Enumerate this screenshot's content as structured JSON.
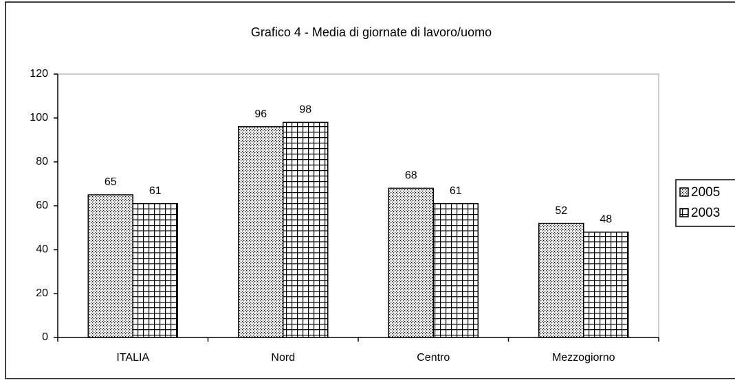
{
  "chart_data": {
    "type": "bar",
    "title": "Grafico 4 - Media di giornate di lavoro/uomo",
    "categories": [
      "ITALIA",
      "Nord",
      "Centro",
      "Mezzogiorno"
    ],
    "series": [
      {
        "name": "2005",
        "color": "#000000",
        "pattern": "dots",
        "values": [
          65,
          96,
          68,
          52
        ]
      },
      {
        "name": "2003",
        "color": "#000000",
        "pattern": "grid",
        "values": [
          61,
          98,
          61,
          48
        ]
      }
    ],
    "ylim": [
      0,
      120
    ],
    "yticks": [
      0,
      20,
      40,
      60,
      80,
      100,
      120
    ],
    "legend": "right"
  }
}
